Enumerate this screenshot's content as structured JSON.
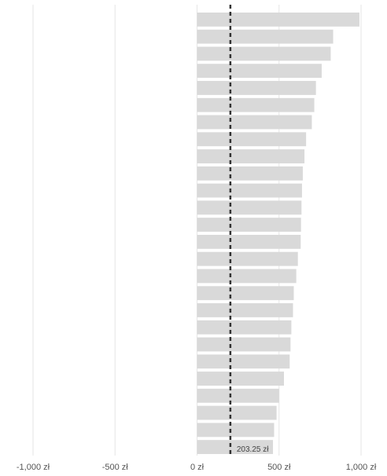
{
  "chart_data": {
    "type": "bar",
    "orientation": "horizontal",
    "values": [
      990,
      830,
      815,
      760,
      725,
      715,
      700,
      665,
      655,
      645,
      640,
      637,
      634,
      632,
      615,
      605,
      590,
      585,
      575,
      570,
      565,
      530,
      500,
      485,
      470,
      463
    ],
    "xlim": [
      -1000,
      1000
    ],
    "x_ticks": [
      -1000,
      -500,
      0,
      500,
      1000
    ],
    "x_tick_labels": [
      "-1,000 zł",
      "-500 zł",
      "0 zł",
      "500 zł",
      "1,000 zł"
    ],
    "reference_line": {
      "value": 203.25,
      "label": "203.25 zł",
      "style": "dashed"
    },
    "grid": "vertical",
    "bar_color": "#d9d9d9",
    "gridline_color": "#e6e6e6",
    "reference_line_color": "#333333",
    "tick_label_color": "#555555"
  }
}
